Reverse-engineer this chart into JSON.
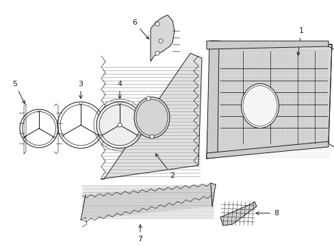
{
  "bg_color": "#ffffff",
  "line_color": "#1a1a1a",
  "fill_light": "#e8e8e8",
  "fill_med": "#d0d0d0",
  "fill_dark": "#b0b0b0",
  "figsize": [
    4.89,
    3.6
  ],
  "dpi": 100,
  "lw": 0.7,
  "lw_thin": 0.45
}
